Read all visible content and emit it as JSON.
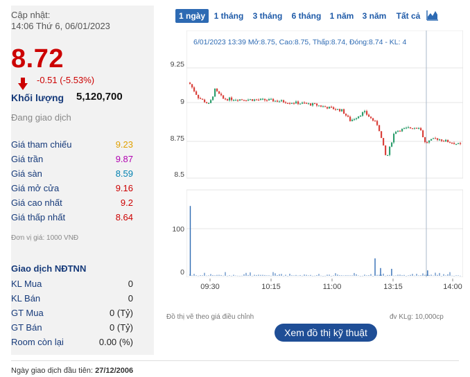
{
  "quote": {
    "update_label": "Cập nhật:",
    "update_time": "14:06 Thứ 6, 06/01/2023",
    "price": "8.72",
    "change": "-0.51 (-5.53%)",
    "volume_label": "Khối lượng",
    "volume_value": "5,120,700",
    "status": "Đang giao dịch"
  },
  "stats": [
    {
      "label": "Giá tham chiếu",
      "value": "9.23",
      "color": "#e0a000"
    },
    {
      "label": "Giá trần",
      "value": "9.87",
      "color": "#b000b0"
    },
    {
      "label": "Giá sàn",
      "value": "8.59",
      "color": "#0080b0"
    },
    {
      "label": "Giá mở cửa",
      "value": "9.16",
      "color": "#cc0000"
    },
    {
      "label": "Giá cao nhất",
      "value": "9.2",
      "color": "#cc0000"
    },
    {
      "label": "Giá thấp nhất",
      "value": "8.64",
      "color": "#cc0000"
    }
  ],
  "unit_note": "Đơn vị giá: 1000 VNĐ",
  "foreign": {
    "title": "Giao dịch NĐTNN",
    "rows": [
      {
        "label": "KL Mua",
        "value": "0"
      },
      {
        "label": "KL Bán",
        "value": "0"
      },
      {
        "label": "GT Mua",
        "value": "0 (Tỷ)"
      },
      {
        "label": "GT Bán",
        "value": "0 (Tỷ)"
      },
      {
        "label": "Room còn lại",
        "value": "0.00 (%)"
      }
    ]
  },
  "tabs": [
    "1 ngày",
    "1 tháng",
    "3 tháng",
    "6 tháng",
    "1 năm",
    "3 năm",
    "Tất cả"
  ],
  "active_tab": 0,
  "chart_icon": "chart-area-icon",
  "chart_data": {
    "type": "candlestick",
    "tooltip": "6/01/2023 13:39 Mở:8.75, Cao:8.75, Thấp:8.74, Đóng:8.74 - KL: 4",
    "price_ticks": [
      "9.25",
      "9",
      "8.75",
      "8.5"
    ],
    "volume_ticks": [
      "100",
      "0"
    ],
    "time_ticks": [
      "09:30",
      "10:15",
      "11:00",
      "13:15",
      "14:00"
    ],
    "ylim": [
      8.5,
      9.25
    ],
    "colors": {
      "up": "#2e9e6e",
      "down": "#d9403a",
      "grid": "#e6e6e6",
      "volume": "#2d6ab3"
    },
    "segments": [
      {
        "x0": 0.01,
        "x1": 0.04,
        "from": 9.14,
        "to": 9.05
      },
      {
        "x0": 0.04,
        "x1": 0.08,
        "from": 9.05,
        "to": 9.0
      },
      {
        "x0": 0.08,
        "x1": 0.1,
        "from": 9.0,
        "to": 9.1
      },
      {
        "x0": 0.1,
        "x1": 0.13,
        "from": 9.1,
        "to": 9.04
      },
      {
        "x0": 0.13,
        "x1": 0.3,
        "from": 9.04,
        "to": 9.03
      },
      {
        "x0": 0.3,
        "x1": 0.46,
        "from": 9.03,
        "to": 9.0
      },
      {
        "x0": 0.46,
        "x1": 0.56,
        "from": 9.0,
        "to": 8.96
      },
      {
        "x0": 0.56,
        "x1": 0.59,
        "from": 8.96,
        "to": 8.89
      },
      {
        "x0": 0.59,
        "x1": 0.64,
        "from": 8.89,
        "to": 8.95
      },
      {
        "x0": 0.64,
        "x1": 0.69,
        "from": 8.95,
        "to": 8.86
      },
      {
        "x0": 0.69,
        "x1": 0.72,
        "from": 8.86,
        "to": 8.63
      },
      {
        "x0": 0.72,
        "x1": 0.75,
        "from": 8.63,
        "to": 8.82
      },
      {
        "x0": 0.75,
        "x1": 0.8,
        "from": 8.82,
        "to": 8.84
      },
      {
        "x0": 0.8,
        "x1": 0.84,
        "from": 8.84,
        "to": 8.85
      },
      {
        "x0": 0.84,
        "x1": 0.86,
        "from": 8.85,
        "to": 8.74
      },
      {
        "x0": 0.86,
        "x1": 0.9,
        "from": 8.74,
        "to": 8.77
      },
      {
        "x0": 0.9,
        "x1": 1.0,
        "from": 8.77,
        "to": 8.72
      }
    ],
    "volume_spikes": [
      {
        "x": 0.012,
        "v": 180
      },
      {
        "x": 0.68,
        "v": 45
      },
      {
        "x": 0.7,
        "v": 20
      },
      {
        "x": 0.74,
        "v": 18
      },
      {
        "x": 0.87,
        "v": 14
      }
    ]
  },
  "footnote_left": "Đồ thị vẽ theo giá điều chỉnh",
  "footnote_right": "đv KLg: 10,000cp",
  "tech_button": "Xem đồ thị kỹ thuật",
  "first_date_label": "Ngày giao dịch đầu tiên:",
  "first_date_value": "27/12/2006"
}
